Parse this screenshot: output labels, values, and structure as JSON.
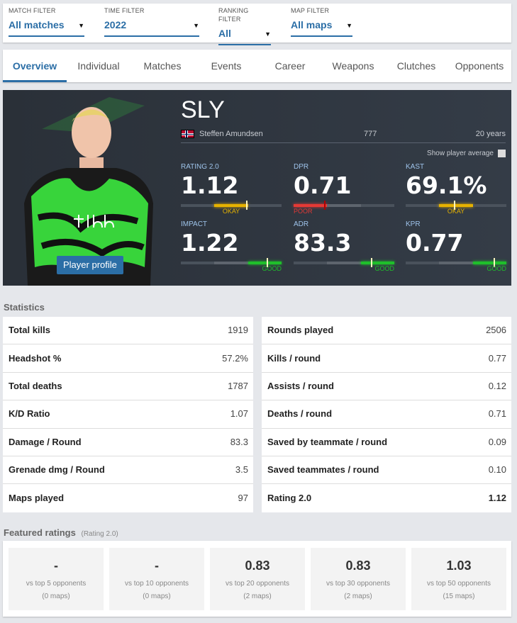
{
  "filters": [
    {
      "label": "MATCH FILTER",
      "value": "All matches"
    },
    {
      "label": "TIME FILTER",
      "value": "2022"
    },
    {
      "label": "RANKING FILTER",
      "value": "All"
    },
    {
      "label": "MAP FILTER",
      "value": "All maps"
    }
  ],
  "tabs": [
    "Overview",
    "Individual",
    "Matches",
    "Events",
    "Career",
    "Weapons",
    "Clutches",
    "Opponents"
  ],
  "active_tab": "Overview",
  "player": {
    "nickname": "SLY",
    "real_name": "Steffen Amundsen",
    "country_flag": "norway-flag",
    "number": "777",
    "age": "20 years",
    "profile_button": "Player profile",
    "show_average_label": "Show player average",
    "show_average_checked": false
  },
  "stats": [
    {
      "key": "RATING 2.0",
      "value": "1.12",
      "grade": "OKAY",
      "level": 0.65
    },
    {
      "key": "DPR",
      "value": "0.71",
      "grade": "POOR",
      "level": 0.3
    },
    {
      "key": "KAST",
      "value": "69.1%",
      "grade": "OKAY",
      "level": 0.48
    },
    {
      "key": "IMPACT",
      "value": "1.22",
      "grade": "GOOD",
      "level": 0.85
    },
    {
      "key": "ADR",
      "value": "83.3",
      "grade": "GOOD",
      "level": 0.77
    },
    {
      "key": "KPR",
      "value": "0.77",
      "grade": "GOOD",
      "level": 0.87
    }
  ],
  "colors": {
    "accent": "#2b6ea6",
    "poor": "#e53935",
    "okay": "#e6b200",
    "good": "#1fbf2b"
  },
  "statistics_title": "Statistics",
  "left_table": [
    {
      "name": "Total kills",
      "value": "1919"
    },
    {
      "name": "Headshot %",
      "value": "57.2%"
    },
    {
      "name": "Total deaths",
      "value": "1787"
    },
    {
      "name": "K/D Ratio",
      "value": "1.07"
    },
    {
      "name": "Damage / Round",
      "value": "83.3"
    },
    {
      "name": "Grenade dmg / Round",
      "value": "3.5"
    },
    {
      "name": "Maps played",
      "value": "97"
    }
  ],
  "right_table": [
    {
      "name": "Rounds played",
      "value": "2506"
    },
    {
      "name": "Kills / round",
      "value": "0.77"
    },
    {
      "name": "Assists / round",
      "value": "0.12"
    },
    {
      "name": "Deaths / round",
      "value": "0.71"
    },
    {
      "name": "Saved by teammate / round",
      "value": "0.09"
    },
    {
      "name": "Saved teammates / round",
      "value": "0.10"
    },
    {
      "name": "Rating 2.0",
      "value": "1.12"
    }
  ],
  "featured": {
    "title": "Featured ratings",
    "subtitle": "(Rating 2.0)",
    "cards": [
      {
        "value": "-",
        "label": "vs top 5 opponents",
        "maps": "(0 maps)"
      },
      {
        "value": "-",
        "label": "vs top 10 opponents",
        "maps": "(0 maps)"
      },
      {
        "value": "0.83",
        "label": "vs top 20 opponents",
        "maps": "(2 maps)"
      },
      {
        "value": "0.83",
        "label": "vs top 30 opponents",
        "maps": "(2 maps)"
      },
      {
        "value": "1.03",
        "label": "vs top 50 opponents",
        "maps": "(15 maps)"
      }
    ]
  }
}
